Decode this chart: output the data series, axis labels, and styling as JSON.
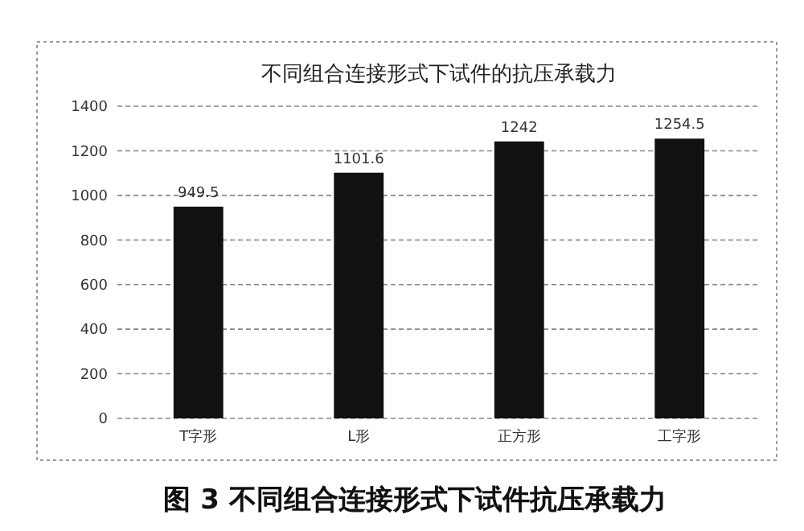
{
  "chart_data": {
    "type": "bar",
    "title": "不同组合连接形式下试件的抗压承载力",
    "categories": [
      "T字形",
      "L形",
      "正方形",
      "工字形"
    ],
    "values": [
      949.5,
      1101.6,
      1242,
      1254.5
    ],
    "color": "#111111",
    "ylim": [
      0,
      1400
    ],
    "yticks": [
      0,
      200,
      400,
      600,
      800,
      1000,
      1200,
      1400
    ],
    "grid": "y",
    "data_labels": true,
    "annotations": [
      "图 3   不同组合连接形式下试件抗压承载力"
    ]
  }
}
